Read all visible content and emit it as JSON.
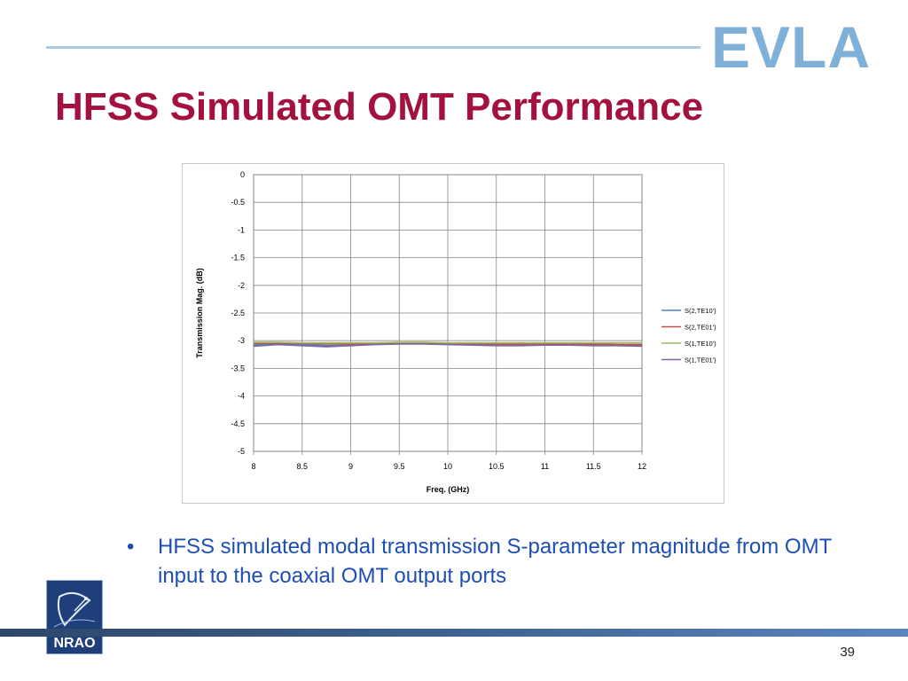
{
  "header": {
    "logo_text": "EVLA",
    "title": "HFSS Simulated OMT Performance"
  },
  "chart_data": {
    "type": "line",
    "xlabel": "Freq. (GHz)",
    "ylabel": "Transmission Mag.  (dB)",
    "xlim": [
      8,
      12
    ],
    "ylim": [
      -5,
      0
    ],
    "x_ticks": [
      "8",
      "8.5",
      "9",
      "9.5",
      "10",
      "10.5",
      "11",
      "11.5",
      "12"
    ],
    "y_ticks": [
      "0",
      "-0.5",
      "-1",
      "-1.5",
      "-2",
      "-2.5",
      "-3",
      "-3.5",
      "-4",
      "-4.5",
      "-5"
    ],
    "grid": true,
    "legend_position": "right",
    "x": [
      8,
      8.25,
      8.5,
      8.75,
      9,
      9.25,
      9.5,
      9.75,
      10,
      10.25,
      10.5,
      10.75,
      11,
      11.25,
      11.5,
      11.75,
      12
    ],
    "series": [
      {
        "name": "S(2,TE10')",
        "color": "#4f81bd",
        "values": [
          -3.08,
          -3.05,
          -3.07,
          -3.09,
          -3.08,
          -3.06,
          -3.05,
          -3.05,
          -3.06,
          -3.07,
          -3.08,
          -3.08,
          -3.07,
          -3.07,
          -3.08,
          -3.08,
          -3.09
        ]
      },
      {
        "name": "S(2,TE01')",
        "color": "#c0504d",
        "values": [
          -3.05,
          -3.04,
          -3.05,
          -3.06,
          -3.06,
          -3.05,
          -3.04,
          -3.04,
          -3.05,
          -3.05,
          -3.06,
          -3.06,
          -3.06,
          -3.06,
          -3.06,
          -3.07,
          -3.07
        ]
      },
      {
        "name": "S(1,TE10')",
        "color": "#9bbb59",
        "values": [
          -3.03,
          -3.03,
          -3.04,
          -3.04,
          -3.04,
          -3.04,
          -3.03,
          -3.03,
          -3.04,
          -3.04,
          -3.04,
          -3.04,
          -3.04,
          -3.04,
          -3.04,
          -3.04,
          -3.04
        ]
      },
      {
        "name": "S(1,TE01')",
        "color": "#8064a2",
        "values": [
          -3.1,
          -3.07,
          -3.09,
          -3.11,
          -3.09,
          -3.07,
          -3.06,
          -3.06,
          -3.07,
          -3.08,
          -3.09,
          -3.09,
          -3.08,
          -3.08,
          -3.09,
          -3.09,
          -3.1
        ]
      }
    ]
  },
  "body": {
    "bullet": "HFSS simulated modal transmission S-parameter magnitude from OMT input to the coaxial OMT output ports"
  },
  "footer": {
    "logo_text": "NRAO",
    "page_number": "39"
  }
}
